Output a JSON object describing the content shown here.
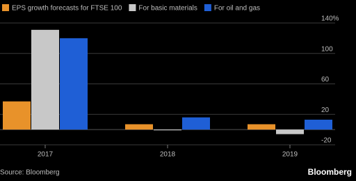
{
  "chart_data": {
    "type": "bar",
    "categories": [
      "2017",
      "2018",
      "2019"
    ],
    "series": [
      {
        "name": "EPS growth forecasts for FTSE 100",
        "color": "#e8922a",
        "values": [
          37,
          7,
          7
        ]
      },
      {
        "name": "For basic materials",
        "color": "#c8c8c8",
        "values": [
          131,
          -1,
          -6
        ]
      },
      {
        "name": "For oil and gas",
        "color": "#1f5fd6",
        "values": [
          120,
          16,
          13
        ]
      }
    ],
    "ylim": [
      -20,
      140
    ],
    "yticks": [
      -20,
      20,
      60,
      100,
      {
        "value": 140,
        "label": "140%"
      }
    ],
    "grid": true,
    "source": "Source: Bloomberg",
    "logo": "Bloomberg"
  }
}
